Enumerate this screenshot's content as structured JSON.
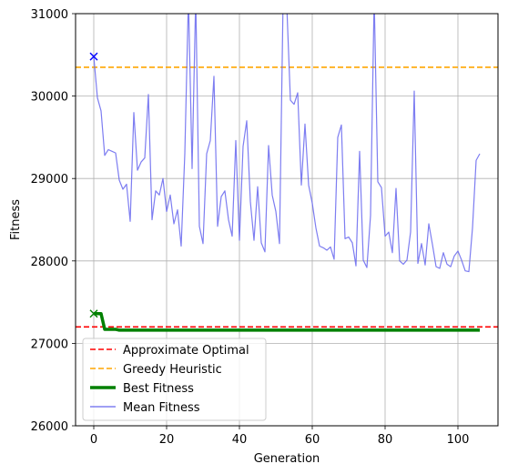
{
  "chart_data": {
    "type": "line",
    "title": "",
    "xlabel": "Generation",
    "ylabel": "Fitness",
    "xlim": [
      -5,
      111
    ],
    "ylim": [
      26000,
      31000
    ],
    "xticks": [
      0,
      20,
      40,
      60,
      80,
      100
    ],
    "yticks": [
      26000,
      27000,
      28000,
      29000,
      30000,
      31000
    ],
    "grid": true,
    "legend_position": "bottom-left",
    "hlines": [
      {
        "name": "Approximate Optimal",
        "y": 27200,
        "color": "#ff0000",
        "style": "dashed"
      },
      {
        "name": "Greedy Heuristic",
        "y": 30350,
        "color": "#ffa500",
        "style": "dashed"
      }
    ],
    "series": [
      {
        "name": "Best Fitness",
        "color": "#008000",
        "x": [
          0,
          1,
          2,
          3,
          4,
          5,
          6,
          7,
          8,
          106
        ],
        "y": [
          27360,
          27360,
          27360,
          27170,
          27170,
          27170,
          27170,
          27160,
          27160,
          27160
        ]
      },
      {
        "name": "Mean Fitness",
        "color": "#6666ee",
        "x": [
          0,
          1,
          2,
          3,
          4,
          5,
          6,
          7,
          8,
          9,
          10,
          11,
          12,
          13,
          14,
          15,
          16,
          17,
          18,
          19,
          20,
          21,
          22,
          23,
          24,
          25,
          26,
          27,
          28,
          29,
          30,
          31,
          32,
          33,
          34,
          35,
          36,
          37,
          38,
          39,
          40,
          41,
          42,
          43,
          44,
          45,
          46,
          47,
          48,
          49,
          50,
          51,
          52,
          53,
          54,
          55,
          56,
          57,
          58,
          59,
          60,
          61,
          62,
          63,
          64,
          65,
          66,
          67,
          68,
          69,
          70,
          71,
          72,
          73,
          74,
          75,
          76,
          77,
          78,
          79,
          80,
          81,
          82,
          83,
          84,
          85,
          86,
          87,
          88,
          89,
          90,
          91,
          92,
          93,
          94,
          95,
          96,
          97,
          98,
          99,
          100,
          101,
          102,
          103,
          104,
          105,
          106
        ],
        "y": [
          30480,
          29980,
          29820,
          29280,
          29350,
          29330,
          29310,
          28980,
          28870,
          28930,
          28480,
          29800,
          29100,
          29200,
          29250,
          30020,
          28500,
          28850,
          28800,
          29000,
          28600,
          28800,
          28450,
          28620,
          28180,
          29300,
          31200,
          29120,
          31200,
          28420,
          28210,
          29300,
          29460,
          30240,
          28420,
          28780,
          28850,
          28500,
          28300,
          29460,
          28250,
          29390,
          29700,
          28720,
          28250,
          28900,
          28220,
          28110,
          29400,
          28800,
          28600,
          28210,
          31200,
          31100,
          29950,
          29900,
          30040,
          28920,
          29660,
          28920,
          28700,
          28400,
          28180,
          28160,
          28130,
          28170,
          28020,
          29500,
          29650,
          28270,
          28290,
          28220,
          27940,
          29330,
          28010,
          27920,
          28550,
          31200,
          28960,
          28890,
          28300,
          28350,
          28100,
          28880,
          28000,
          27960,
          28010,
          28350,
          30060,
          27970,
          28210,
          27950,
          28450,
          28200,
          27930,
          27910,
          28100,
          27960,
          27930,
          28060,
          28120,
          28010,
          27880,
          27870,
          28400,
          29220,
          29300
        ]
      }
    ],
    "markers": [
      {
        "x": 0,
        "y": 30480,
        "symbol": "x",
        "color": "#0000ff"
      },
      {
        "x": 0,
        "y": 27360,
        "symbol": "x",
        "color": "#008000"
      }
    ],
    "legend": [
      {
        "label": "Approximate Optimal",
        "color": "#ff0000",
        "style": "dashed"
      },
      {
        "label": "Greedy Heuristic",
        "color": "#ffa500",
        "style": "dashed"
      },
      {
        "label": "Best Fitness",
        "color": "#008000",
        "style": "solid-thick"
      },
      {
        "label": "Mean Fitness",
        "color": "#6666ee",
        "style": "solid-thin"
      }
    ]
  }
}
